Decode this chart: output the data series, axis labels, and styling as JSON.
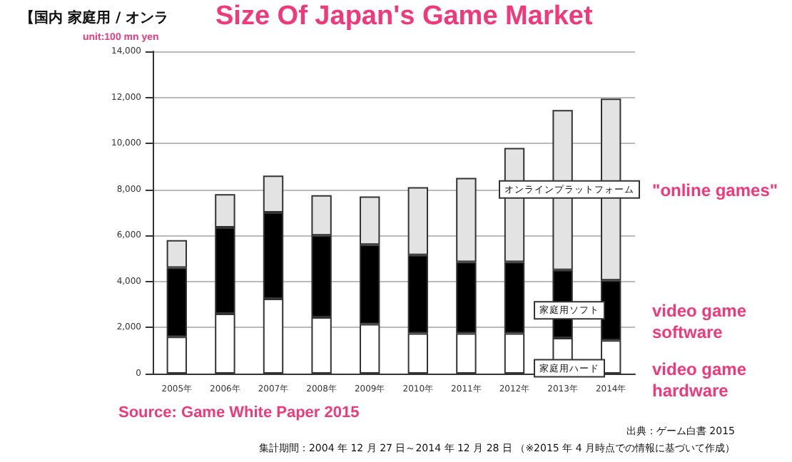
{
  "chart_data": {
    "type": "bar",
    "title": "Size Of Japan's Game Market",
    "subtitle": "【国内 家庭用 / オンラ",
    "ylabel": "unit:100 mn yen",
    "stacked": true,
    "grid": "y",
    "legend": false,
    "categories": [
      "2005年",
      "2006年",
      "2007年",
      "2008年",
      "2009年",
      "2010年",
      "2011年",
      "2012年",
      "2013年",
      "2014年"
    ],
    "series": [
      {
        "name": "家庭用ハード",
        "color": "#ffffff",
        "values": [
          1600,
          2600,
          3250,
          2450,
          2150,
          1750,
          1750,
          1750,
          1550,
          1450
        ]
      },
      {
        "name": "家庭用ソフト",
        "color": "#000000",
        "values": [
          3000,
          3750,
          3750,
          3550,
          3450,
          3400,
          3100,
          3100,
          2950,
          2600
        ]
      },
      {
        "name": "オンラインプラットフォーム",
        "color": "#e3e3e3",
        "values": [
          1200,
          1450,
          1600,
          1750,
          2100,
          2950,
          3650,
          4950,
          6950,
          7900
        ]
      }
    ],
    "ylim": [
      0,
      14000
    ],
    "yticks": [
      {
        "value": 0,
        "label": "0"
      },
      {
        "value": 2000,
        "label": "2,000"
      },
      {
        "value": 4000,
        "label": "4,000"
      },
      {
        "value": 6000,
        "label": "6,000"
      },
      {
        "value": 8000,
        "label": "8,000"
      },
      {
        "value": 10000,
        "label": "10,000"
      },
      {
        "value": 12000,
        "label": "12,000"
      },
      {
        "value": 14000,
        "label": "14,000"
      }
    ],
    "annotations": [
      "\"online games\"",
      "video game software",
      "video game hardware",
      "Source: Game White Paper 2015",
      "出典：ゲーム白書 2015",
      "集計期間：2004 年 12 月 27 日～2014 年 12 月 28 日 （※2015 年 4 月時点での情報に基づいて作成）"
    ]
  }
}
